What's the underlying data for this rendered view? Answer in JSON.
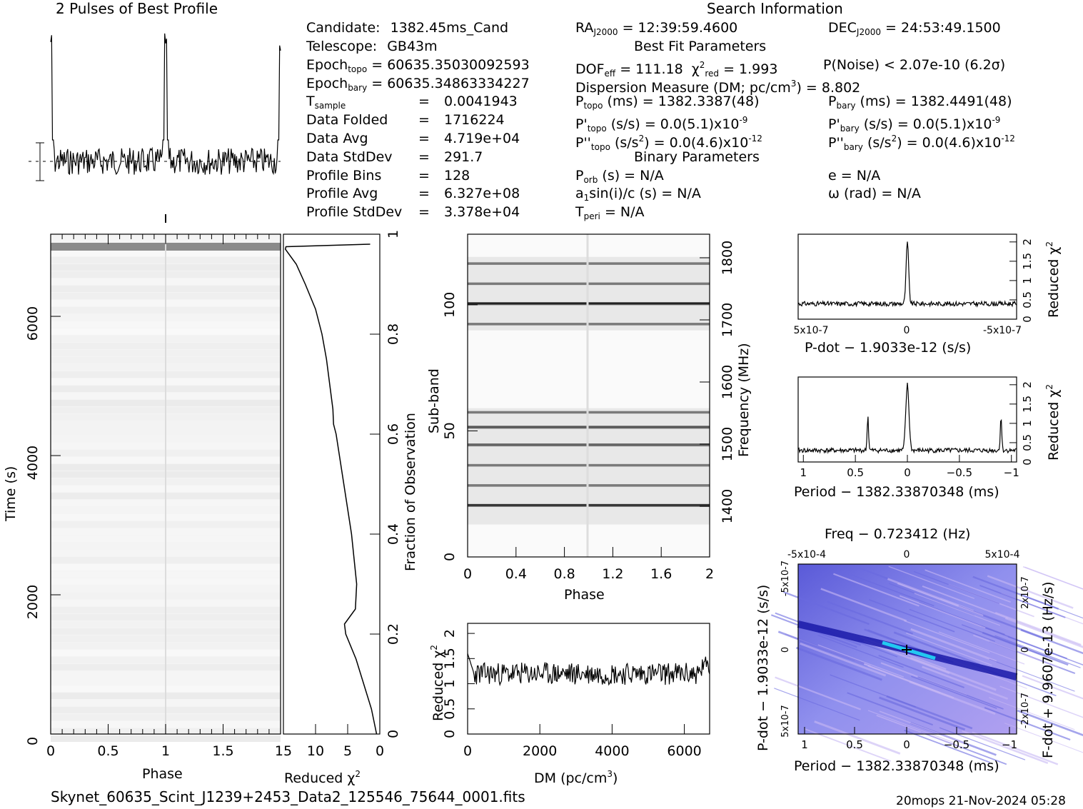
{
  "header": {
    "profile_title": "2 Pulses of Best Profile",
    "search_title": "Search Information",
    "best_fit_title": "Best Fit Parameters",
    "binary_title": "Binary Parameters"
  },
  "info_left": [
    {
      "label": "Candidate:",
      "value": "1382.45ms_Cand"
    },
    {
      "label": "Telescope:",
      "value": "GB43m"
    },
    {
      "label": "Epoch",
      "sub": "topo",
      "value": "= 60635.35030092593"
    },
    {
      "label": "Epoch",
      "sub": "bary",
      "value": "= 60635.34863334227"
    },
    {
      "label": "T",
      "sub": "sample",
      "value": "0.0041943"
    },
    {
      "label": "Data Folded",
      "value": "1716224"
    },
    {
      "label": "Data Avg",
      "value": "4.719e+04"
    },
    {
      "label": "Data StdDev",
      "value": "291.7"
    },
    {
      "label": "Profile Bins",
      "value": "128"
    },
    {
      "label": "Profile Avg",
      "value": "6.327e+08"
    },
    {
      "label": "Profile StdDev",
      "value": "3.378e+04"
    }
  ],
  "search_info": {
    "ra": "= 12:39:59.4600",
    "dec": "= 24:53:49.1500",
    "dof": "= 111.18",
    "chi2": "= 1.993",
    "pnoise": "P(Noise) < 2.07e-10   (6.2σ)",
    "dm_text": "Dispersion Measure (DM; pc/cm",
    "dm_value": ") = 8.802",
    "p_topo": "(ms) =  1382.3387(48)",
    "p_bary": "(ms) =  1382.4491(48)",
    "pd_topo": "(s/s) = 0.0(5.1)x10",
    "pd_topo_exp": "-9",
    "pd_bary": "(s/s) = 0.0(5.1)x10",
    "pd_bary_exp": "-9",
    "pdd_topo": "(s/s",
    "pdd_topo_val": ") = 0.0(4.6)x10",
    "pdd_exp": "-12",
    "porb": "(s) = N/A",
    "ecc": "e = N/A",
    "a1": "a",
    "a1_rest": "sin(i)/c (s) = N/A",
    "omega": "ω (rad) = N/A",
    "tperi": "= N/A"
  },
  "footer": {
    "filename": "Skynet_60635_Scint_J1239+2453_Data2_125546_75644_0001.fits",
    "stamp": "20mops 21-Nov-2024 05:28"
  },
  "chart_data": [
    {
      "type": "line",
      "title": "2 Pulses of Best Profile",
      "description_values": "pulse peaks at phase 0.0, 1.0, 2.0",
      "x": [
        0,
        0.5,
        1.0,
        1.5,
        2.0
      ],
      "peak_phases": [
        0.0,
        1.0,
        2.0
      ]
    },
    {
      "type": "heatmap",
      "xlabel": "Phase",
      "ylabel": "Time (s)",
      "xlim": [
        0,
        2
      ],
      "ylim": [
        0,
        7180
      ],
      "xticks": [
        "0",
        "0.5",
        "1",
        "1.5"
      ],
      "yticks": [
        "0",
        "2000",
        "4000",
        "6000"
      ]
    },
    {
      "type": "line",
      "xlabel": "Reduced χ2",
      "y2label": "Fraction of Observation",
      "xlim": [
        15,
        0
      ],
      "ylim": [
        0,
        1
      ],
      "xticks": [
        "15",
        "10",
        "5",
        "0"
      ],
      "yticks": [
        "0",
        "0.2",
        "0.4",
        "0.6",
        "0.8",
        "1"
      ],
      "fraction": [
        0,
        0.05,
        0.1,
        0.15,
        0.2,
        0.22,
        0.25,
        0.3,
        0.35,
        0.4,
        0.45,
        0.5,
        0.55,
        0.6,
        0.62,
        0.65,
        0.7,
        0.75,
        0.8,
        0.85,
        0.9,
        0.94,
        0.97,
        0.975,
        0.98
      ],
      "chi2": [
        0.5,
        1.3,
        2.5,
        3.7,
        5.3,
        5.5,
        3.8,
        3.6,
        4.0,
        4.4,
        5.0,
        5.6,
        6.2,
        6.8,
        7.2,
        7.3,
        7.8,
        8.3,
        9.0,
        10.0,
        11.6,
        13.0,
        14.7,
        14.6,
        1.5
      ]
    },
    {
      "type": "heatmap",
      "xlabel": "Phase",
      "ylabel": "Sub-band",
      "y2label": "Frequency (MHz)",
      "xlim": [
        0,
        2
      ],
      "ylim": [
        0,
        128
      ],
      "xticks": [
        "0",
        "0.4",
        "0.8",
        "1.2",
        "1.6",
        "2"
      ],
      "yticks": [
        "0",
        "50",
        "100"
      ],
      "y2ticks": [
        "1400",
        "1500",
        "1600",
        "1700",
        "1800"
      ],
      "dark_subbands": [
        20,
        28,
        36,
        44,
        51,
        57,
        92,
        100,
        108,
        116
      ]
    },
    {
      "type": "line",
      "xlabel": "DM (pc/cm3)",
      "ylabel": "Reduced χ2",
      "xlim": [
        0,
        6700
      ],
      "ylim": [
        0,
        2.2
      ],
      "xticks": [
        "0",
        "2000",
        "4000",
        "6000"
      ],
      "yticks": [
        "0",
        "0.5",
        "1",
        "1.5",
        "2"
      ],
      "baseline": 1.2
    },
    {
      "type": "line",
      "xlabel": "P-dot − 1.9033e-12 (s/s)",
      "ylabel": "Reduced χ2",
      "xticks": [
        "5x10-7",
        "0",
        "-5x10-7"
      ],
      "yticks": [
        "0",
        "0.5",
        "1",
        "1.5",
        "2"
      ],
      "peak_x": 0,
      "peak_y": 2.0,
      "baseline": 0.4
    },
    {
      "type": "line",
      "xlabel": "Period − 1382.33870348 (ms)",
      "ylabel": "Reduced χ2",
      "xticks": [
        "1",
        "0.5",
        "0",
        "−0.5",
        "−1"
      ],
      "yticks": [
        "0",
        "0.5",
        "1",
        "1.5",
        "2"
      ],
      "peaks": [
        {
          "x": 0.38,
          "y": 1.2
        },
        {
          "x": 0,
          "y": 2.0
        },
        {
          "x": -0.9,
          "y": 1.2
        }
      ],
      "baseline": 0.3
    },
    {
      "type": "heatmap",
      "xlabel": "Period − 1382.33870348 (ms)",
      "ylabel": "P-dot − 1.9033e-12 (s/s)",
      "x2label": "Freq − 0.723412 (Hz)",
      "y2label": "F-dot + 9.9607e-13 (Hz/s)",
      "xticks": [
        "1",
        "0.5",
        "0",
        "−0.5",
        "−1"
      ],
      "x2ticks": [
        "-5x10-4",
        "0",
        "5x10-4"
      ],
      "yticks": [
        "-5x10-7",
        "0",
        "5x10-7"
      ],
      "y2ticks": [
        "2x10-7",
        "0",
        "-2x10-7"
      ]
    }
  ]
}
